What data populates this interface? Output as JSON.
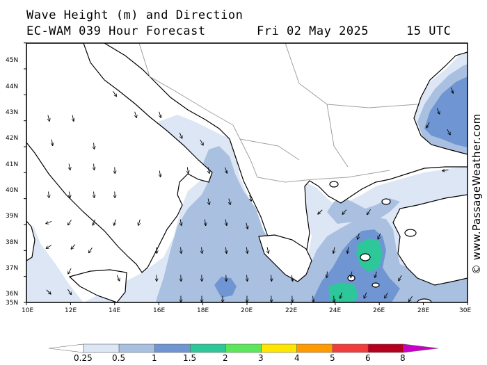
{
  "header": {
    "title_line1": "Wave Height (m) and Direction",
    "title_line2": "EC-WAM 039 Hour Forecast",
    "date": "Fri 02 May 2025",
    "time": "15 UTC"
  },
  "credit": "© www.PassageWeather.com",
  "colors": {
    "land": "#ffffff",
    "coast": "#000000",
    "border": "#a0a0a0",
    "wave_0_25": "#dde6f4",
    "wave_0_5": "#a9c0e0",
    "wave_1": "#6f96d2",
    "wave_1_5": "#2ec79a"
  },
  "map": {
    "lon_range": [
      10,
      30
    ],
    "lat_range": [
      35,
      45.7
    ],
    "lon_labels": [
      "10E",
      "12E",
      "14E",
      "16E",
      "18E",
      "20E",
      "22E",
      "24E",
      "26E",
      "28E",
      "30E"
    ],
    "lat_labels": [
      "35N",
      "36N",
      "37N",
      "38N",
      "39N",
      "40N",
      "41N",
      "42N",
      "43N",
      "44N",
      "45N"
    ]
  },
  "colorbar": {
    "labels": [
      "0.25",
      "0.5",
      "1",
      "1.5",
      "2",
      "3",
      "4",
      "5",
      "6",
      "8"
    ],
    "colors": [
      "#ffffff",
      "#dde6f4",
      "#a9c0e0",
      "#6f96d2",
      "#2ec79a",
      "#5ce65c",
      "#ffe600",
      "#ff9a00",
      "#f03c3c",
      "#b4001e",
      "#c800c8"
    ]
  }
}
